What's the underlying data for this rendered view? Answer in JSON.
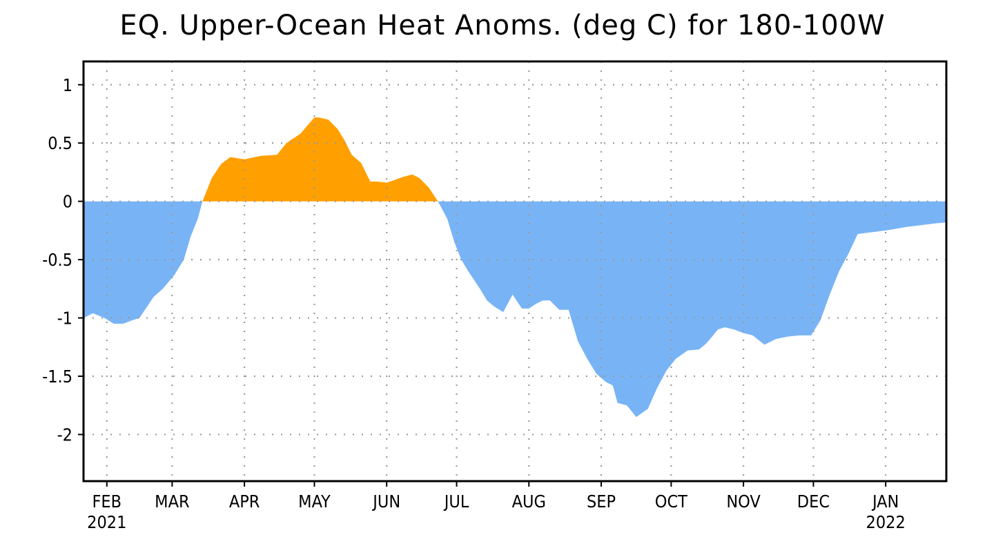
{
  "chart_data": {
    "type": "area",
    "title": "EQ. Upper-Ocean Heat Anoms. (deg C) for 180-100W",
    "xlabel": "",
    "ylabel": "",
    "ylim": [
      -2.4,
      1.2
    ],
    "xlim": [
      "2021-01-22",
      "2022-01-27"
    ],
    "grid": true,
    "legend": "none",
    "colors": {
      "positive": "#ffa000",
      "negative": "#78b4f5",
      "axis": "#000000",
      "grid": "#999999"
    },
    "y_ticks": [
      {
        "value": 1,
        "label": "1"
      },
      {
        "value": 0.5,
        "label": "0.5"
      },
      {
        "value": 0,
        "label": "0"
      },
      {
        "value": -0.5,
        "label": "-0.5"
      },
      {
        "value": -1,
        "label": "-1"
      },
      {
        "value": -1.5,
        "label": "-1.5"
      },
      {
        "value": -2,
        "label": "-2"
      }
    ],
    "x_ticks": [
      {
        "date": "2021-02-01",
        "label": "FEB",
        "sublabel": "2021"
      },
      {
        "date": "2021-03-01",
        "label": "MAR",
        "sublabel": ""
      },
      {
        "date": "2021-04-01",
        "label": "APR",
        "sublabel": ""
      },
      {
        "date": "2021-05-01",
        "label": "MAY",
        "sublabel": ""
      },
      {
        "date": "2021-06-01",
        "label": "JUN",
        "sublabel": ""
      },
      {
        "date": "2021-07-01",
        "label": "JUL",
        "sublabel": ""
      },
      {
        "date": "2021-08-01",
        "label": "AUG",
        "sublabel": ""
      },
      {
        "date": "2021-09-01",
        "label": "SEP",
        "sublabel": ""
      },
      {
        "date": "2021-10-01",
        "label": "OCT",
        "sublabel": ""
      },
      {
        "date": "2021-11-01",
        "label": "NOV",
        "sublabel": ""
      },
      {
        "date": "2021-12-01",
        "label": "DEC",
        "sublabel": ""
      },
      {
        "date": "2022-01-01",
        "label": "JAN",
        "sublabel": "2022"
      }
    ],
    "series": [
      {
        "x": [
          "2021-01-22",
          "2021-01-26",
          "2021-01-31",
          "2021-02-04",
          "2021-02-08",
          "2021-02-12",
          "2021-02-15",
          "2021-02-21",
          "2021-02-25",
          "2021-03-02",
          "2021-03-06",
          "2021-03-09",
          "2021-03-12",
          "2021-03-14",
          "2021-03-18",
          "2021-03-22",
          "2021-03-26",
          "2021-04-01",
          "2021-04-08",
          "2021-04-15",
          "2021-04-19",
          "2021-04-25",
          "2021-04-28",
          "2021-05-01",
          "2021-05-03",
          "2021-05-07",
          "2021-05-11",
          "2021-05-14",
          "2021-05-17",
          "2021-05-21",
          "2021-05-25",
          "2021-05-28",
          "2021-06-01",
          "2021-06-04",
          "2021-06-08",
          "2021-06-12",
          "2021-06-15",
          "2021-06-19",
          "2021-06-23",
          "2021-06-27",
          "2021-06-30",
          "2021-07-03",
          "2021-07-06",
          "2021-07-08",
          "2021-07-11",
          "2021-07-14",
          "2021-07-17",
          "2021-07-21",
          "2021-07-25",
          "2021-07-29",
          "2021-08-01",
          "2021-08-04",
          "2021-08-07",
          "2021-08-10",
          "2021-08-14",
          "2021-08-18",
          "2021-08-22",
          "2021-08-26",
          "2021-08-30",
          "2021-09-03",
          "2021-09-06",
          "2021-09-08",
          "2021-09-12",
          "2021-09-16",
          "2021-09-21",
          "2021-09-25",
          "2021-09-29",
          "2021-10-03",
          "2021-10-08",
          "2021-10-13",
          "2021-10-16",
          "2021-10-19",
          "2021-10-21",
          "2021-10-24",
          "2021-10-28",
          "2021-11-01",
          "2021-11-05",
          "2021-11-10",
          "2021-11-15",
          "2021-11-20",
          "2021-11-25",
          "2021-11-30",
          "2021-12-04",
          "2021-12-08",
          "2021-12-12",
          "2021-12-16",
          "2021-12-20",
          "2021-12-24",
          "2021-12-28",
          "2022-01-01",
          "2022-01-04",
          "2022-01-07",
          "2022-01-10",
          "2022-01-14",
          "2022-01-18",
          "2022-01-22",
          "2022-01-27"
        ],
        "y": [
          -1.0,
          -0.96,
          -1.0,
          -1.05,
          -1.05,
          -1.02,
          -1.0,
          -0.82,
          -0.75,
          -0.63,
          -0.5,
          -0.3,
          -0.15,
          0.0,
          0.2,
          0.32,
          0.38,
          0.36,
          0.39,
          0.4,
          0.5,
          0.58,
          0.65,
          0.72,
          0.72,
          0.7,
          0.62,
          0.52,
          0.4,
          0.33,
          0.17,
          0.17,
          0.16,
          0.18,
          0.21,
          0.23,
          0.2,
          0.12,
          0.0,
          -0.15,
          -0.35,
          -0.5,
          -0.6,
          -0.66,
          -0.75,
          -0.85,
          -0.9,
          -0.95,
          -0.8,
          -0.92,
          -0.92,
          -0.88,
          -0.85,
          -0.85,
          -0.93,
          -0.93,
          -1.2,
          -1.35,
          -1.48,
          -1.55,
          -1.58,
          -1.73,
          -1.75,
          -1.85,
          -1.78,
          -1.6,
          -1.45,
          -1.35,
          -1.28,
          -1.27,
          -1.22,
          -1.15,
          -1.1,
          -1.08,
          -1.1,
          -1.13,
          -1.15,
          -1.23,
          -1.18,
          -1.16,
          -1.15,
          -1.15,
          -1.02,
          -0.8,
          -0.6,
          -0.45,
          -0.28,
          -0.27,
          -0.26,
          -0.25,
          -0.24,
          -0.23,
          -0.22,
          -0.21,
          -0.2,
          -0.19,
          -0.18
        ]
      }
    ]
  }
}
